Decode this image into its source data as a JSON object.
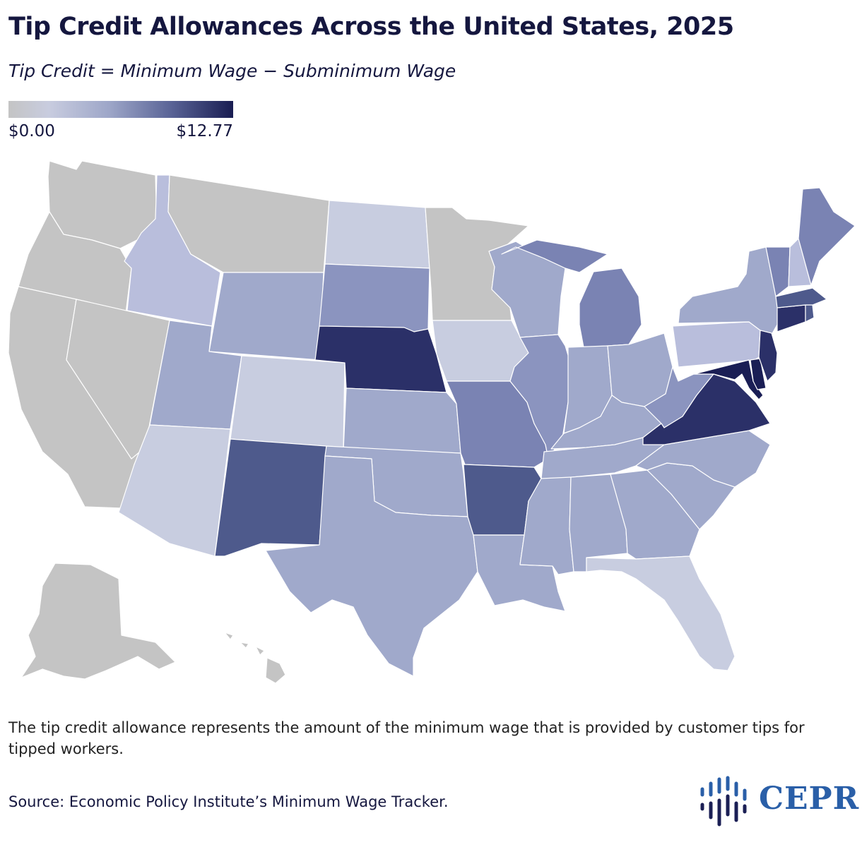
{
  "header": {
    "title": "Tip Credit Allowances Across the United States, 2025",
    "subtitle": "Tip Credit = Minimum Wage − Subminimum Wage"
  },
  "legend": {
    "min_label": "$0.00",
    "max_label": "$12.77",
    "colors": [
      "#c4c4c4",
      "#c8ccdf",
      "#9da6c8",
      "#5a6497",
      "#191d52"
    ]
  },
  "map": {
    "palette": {
      "none": "#c4c4c4",
      "verylow": "#c8cde0",
      "low": "#b9bedc",
      "mid": "#a0a9cb",
      "midhigh": "#8b94bf",
      "high": "#7a83b3",
      "higher": "#4e5a8c",
      "top": "#2b3068",
      "max": "#1a1e55"
    },
    "states": [
      {
        "id": "WA",
        "level": "none"
      },
      {
        "id": "OR",
        "level": "none"
      },
      {
        "id": "CA",
        "level": "none"
      },
      {
        "id": "NV",
        "level": "none"
      },
      {
        "id": "MT",
        "level": "none"
      },
      {
        "id": "MN",
        "level": "none"
      },
      {
        "id": "AK",
        "level": "none"
      },
      {
        "id": "HI",
        "level": "none"
      },
      {
        "id": "ID",
        "level": "low"
      },
      {
        "id": "ND",
        "level": "verylow"
      },
      {
        "id": "CO",
        "level": "verylow"
      },
      {
        "id": "AZ",
        "level": "verylow"
      },
      {
        "id": "IA",
        "level": "verylow"
      },
      {
        "id": "FL",
        "level": "verylow"
      },
      {
        "id": "WY",
        "level": "mid"
      },
      {
        "id": "UT",
        "level": "mid"
      },
      {
        "id": "SD",
        "level": "midhigh"
      },
      {
        "id": "NE",
        "level": "top"
      },
      {
        "id": "KS",
        "level": "mid"
      },
      {
        "id": "OK",
        "level": "mid"
      },
      {
        "id": "TX",
        "level": "mid"
      },
      {
        "id": "NM",
        "level": "higher"
      },
      {
        "id": "MO",
        "level": "high"
      },
      {
        "id": "AR",
        "level": "higher"
      },
      {
        "id": "LA",
        "level": "mid"
      },
      {
        "id": "WI",
        "level": "mid"
      },
      {
        "id": "IL",
        "level": "midhigh"
      },
      {
        "id": "MI",
        "level": "high"
      },
      {
        "id": "IN",
        "level": "mid"
      },
      {
        "id": "OH",
        "level": "mid"
      },
      {
        "id": "KY",
        "level": "mid"
      },
      {
        "id": "TN",
        "level": "mid"
      },
      {
        "id": "MS",
        "level": "mid"
      },
      {
        "id": "AL",
        "level": "mid"
      },
      {
        "id": "GA",
        "level": "mid"
      },
      {
        "id": "SC",
        "level": "mid"
      },
      {
        "id": "NC",
        "level": "mid"
      },
      {
        "id": "VA",
        "level": "top"
      },
      {
        "id": "WV",
        "level": "midhigh"
      },
      {
        "id": "PA",
        "level": "low"
      },
      {
        "id": "NY",
        "level": "mid"
      },
      {
        "id": "VT",
        "level": "high"
      },
      {
        "id": "NH",
        "level": "low"
      },
      {
        "id": "ME",
        "level": "high"
      },
      {
        "id": "MA",
        "level": "higher"
      },
      {
        "id": "CT",
        "level": "top"
      },
      {
        "id": "RI",
        "level": "higher"
      },
      {
        "id": "NJ",
        "level": "top"
      },
      {
        "id": "DE",
        "level": "max"
      },
      {
        "id": "MD",
        "level": "max"
      }
    ]
  },
  "footer": {
    "note": "The tip credit allowance represents the amount of the minimum wage that is provided by customer tips for tipped workers.",
    "source": "Source: Economic Policy Institute’s Minimum Wage Tracker."
  }
}
